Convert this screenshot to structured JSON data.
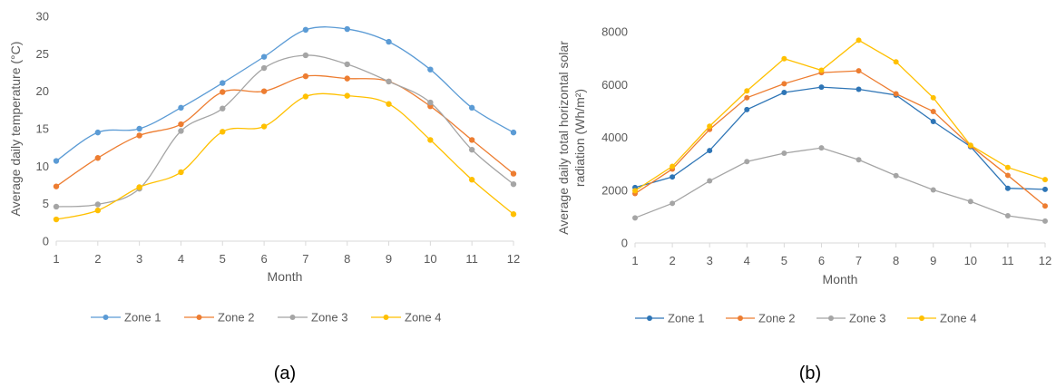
{
  "chart_data": [
    {
      "type": "line",
      "panel_label": "(a)",
      "title": "",
      "xlabel": "Month",
      "ylabel": "Average daily temperature (°C)",
      "xlim": [
        1,
        12
      ],
      "ylim": [
        0,
        30
      ],
      "x": [
        1,
        2,
        3,
        4,
        5,
        6,
        7,
        8,
        9,
        10,
        11,
        12
      ],
      "x_ticks": [
        "1",
        "2",
        "3",
        "4",
        "5",
        "6",
        "7",
        "8",
        "9",
        "10",
        "11",
        "12"
      ],
      "y_ticks": [
        "0",
        "5",
        "10",
        "15",
        "20",
        "25",
        "30"
      ],
      "smooth": true,
      "grid": false,
      "legend": "bottom",
      "series": [
        {
          "name": "Zone 1",
          "color": "#5B9BD5",
          "values": [
            10.7,
            14.5,
            15.0,
            17.8,
            21.1,
            24.6,
            28.2,
            28.3,
            26.6,
            22.9,
            17.8,
            14.5
          ]
        },
        {
          "name": "Zone 2",
          "color": "#ED7D31",
          "values": [
            7.3,
            11.1,
            14.1,
            15.6,
            19.9,
            20.0,
            22.0,
            21.7,
            21.3,
            18.0,
            13.5,
            9.0
          ]
        },
        {
          "name": "Zone 3",
          "color": "#A5A5A5",
          "values": [
            4.6,
            4.9,
            7.0,
            14.7,
            17.7,
            23.1,
            24.8,
            23.6,
            21.3,
            18.5,
            12.2,
            7.6
          ]
        },
        {
          "name": "Zone 4",
          "color": "#FFC000",
          "values": [
            2.9,
            4.1,
            7.2,
            9.2,
            14.6,
            15.3,
            19.3,
            19.4,
            18.3,
            13.5,
            8.2,
            3.6
          ]
        }
      ]
    },
    {
      "type": "line",
      "panel_label": "(b)",
      "title": "",
      "xlabel": "Month",
      "ylabel_line1": "Average daily total horizontal solar",
      "ylabel_line2": "radiation  (Wh/m²)",
      "xlim": [
        1,
        12
      ],
      "ylim": [
        0,
        8000
      ],
      "x": [
        1,
        2,
        3,
        4,
        5,
        6,
        7,
        8,
        9,
        10,
        11,
        12
      ],
      "x_ticks": [
        "1",
        "2",
        "3",
        "4",
        "5",
        "6",
        "7",
        "8",
        "9",
        "10",
        "11",
        "12"
      ],
      "y_ticks": [
        "0",
        "2000",
        "4000",
        "6000",
        "8000"
      ],
      "smooth": false,
      "grid": false,
      "legend": "bottom",
      "series": [
        {
          "name": "Zone 1",
          "color": "#2E75B6",
          "values": [
            2100,
            2500,
            3500,
            5050,
            5700,
            5900,
            5820,
            5600,
            4600,
            3650,
            2070,
            2030
          ]
        },
        {
          "name": "Zone 2",
          "color": "#ED7D31",
          "values": [
            1870,
            2800,
            4300,
            5500,
            6030,
            6450,
            6520,
            5650,
            4980,
            3680,
            2560,
            1400
          ]
        },
        {
          "name": "Zone 3",
          "color": "#A5A5A5",
          "values": [
            950,
            1500,
            2350,
            3080,
            3400,
            3600,
            3150,
            2550,
            2010,
            1570,
            1030,
            830
          ]
        },
        {
          "name": "Zone 4",
          "color": "#FFC000",
          "values": [
            1980,
            2900,
            4420,
            5760,
            6980,
            6540,
            7680,
            6860,
            5500,
            3700,
            2860,
            2400
          ]
        }
      ]
    }
  ]
}
